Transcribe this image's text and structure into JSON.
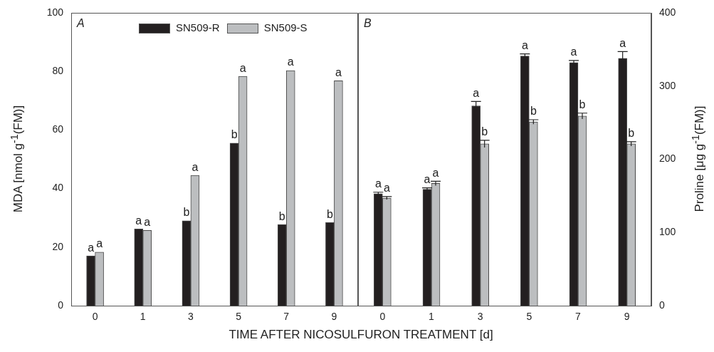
{
  "chart_data": [
    {
      "type": "bar",
      "xlabel": "TIME AFTER NICOSULFURON TREATMENT [d]",
      "ylabel": "MDA [nmol g$^{-1}$(FM)]",
      "categories": [
        "0",
        "1",
        "3",
        "5",
        "7",
        "9"
      ],
      "series": [
        {
          "name": "SN509-R",
          "color": "#231f20",
          "values": [
            17.0,
            26.2,
            29.0,
            55.5,
            27.7,
            28.4
          ]
        },
        {
          "name": "SN509-S",
          "color": "#bcbec0",
          "values": [
            18.3,
            25.7,
            44.5,
            78.3,
            80.3,
            76.8
          ]
        }
      ],
      "ylim": [
        0,
        100
      ],
      "yticks": [
        0,
        20,
        40,
        60,
        80,
        100
      ],
      "legend": "top",
      "grid": false,
      "annotations": [
        "A",
        {
          "text": "a",
          "x": "0",
          "y": 17.0
        },
        {
          "text": "a",
          "x": "0",
          "y": 18.3
        },
        {
          "text": "a",
          "x": "1",
          "y": 26.2
        },
        {
          "text": "a",
          "x": "1",
          "y": 25.7
        },
        {
          "text": "b",
          "x": "3",
          "y": 29.0
        },
        {
          "text": "a",
          "x": "3",
          "y": 44.5
        },
        {
          "text": "b",
          "x": "5",
          "y": 55.5
        },
        {
          "text": "a",
          "x": "5",
          "y": 78.3
        },
        {
          "text": "b",
          "x": "7",
          "y": 27.7
        },
        {
          "text": "a",
          "x": "7",
          "y": 80.3
        },
        {
          "text": "b",
          "x": "9",
          "y": 28.4
        },
        {
          "text": "a",
          "x": "9",
          "y": 76.8
        }
      ]
    },
    {
      "type": "bar",
      "ylabel": "Proline [μg g$^{-1}$(FM)]",
      "categories": [
        "0",
        "1",
        "3",
        "5",
        "7",
        "9"
      ],
      "series": [
        {
          "color": "#231f20",
          "values": [
            153,
            159,
            273,
            341,
            332,
            338
          ],
          "errors": [
            2,
            2,
            6,
            3,
            3,
            9
          ]
        },
        {
          "color": "#bcbec0",
          "values": [
            147,
            167,
            221,
            251,
            259,
            221
          ],
          "errors": [
            2,
            3,
            5,
            3,
            4,
            3
          ]
        }
      ],
      "ylim": [
        0,
        400
      ],
      "yticks": [
        0,
        100,
        200,
        300,
        400
      ],
      "grid": false,
      "annotations": [
        "B",
        {
          "text": "a",
          "x": "0",
          "y": 155
        },
        {
          "text": "a",
          "x": "0",
          "y": 149
        },
        {
          "text": "a",
          "x": "1",
          "y": 161
        },
        {
          "text": "a",
          "x": "1",
          "y": 170
        },
        {
          "text": "a",
          "x": "3",
          "y": 279
        },
        {
          "text": "b",
          "x": "3",
          "y": 226
        },
        {
          "text": "a",
          "x": "5",
          "y": 344
        },
        {
          "text": "b",
          "x": "5",
          "y": 254
        },
        {
          "text": "a",
          "x": "7",
          "y": 335
        },
        {
          "text": "b",
          "x": "7",
          "y": 263
        },
        {
          "text": "a",
          "x": "9",
          "y": 347
        },
        {
          "text": "b",
          "x": "9",
          "y": 224
        }
      ]
    }
  ]
}
